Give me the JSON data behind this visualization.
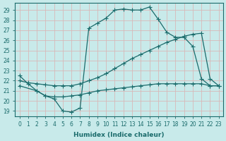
{
  "xlabel": "Humidex (Indice chaleur)",
  "bg_color": "#c8eaea",
  "grid_color": "#b0d8d8",
  "line_color": "#1a6b6b",
  "xlim": [
    -0.5,
    23.5
  ],
  "ylim": [
    18.5,
    29.7
  ],
  "xticks": [
    0,
    1,
    2,
    3,
    4,
    5,
    6,
    7,
    8,
    9,
    10,
    11,
    12,
    13,
    14,
    15,
    16,
    17,
    18,
    19,
    20,
    21,
    22,
    23
  ],
  "yticks": [
    19,
    20,
    21,
    22,
    23,
    24,
    25,
    26,
    27,
    28,
    29
  ],
  "line1_x": [
    0,
    1,
    2,
    3,
    4,
    5,
    6,
    7,
    8,
    9,
    10,
    11,
    12,
    13,
    14,
    15,
    16,
    17,
    18,
    19,
    20,
    21,
    22,
    23
  ],
  "line1_y": [
    22.5,
    21.7,
    21.0,
    20.5,
    20.2,
    19.0,
    18.9,
    19.3,
    27.2,
    27.7,
    28.2,
    29.0,
    29.1,
    29.0,
    29.0,
    29.3,
    28.1,
    26.8,
    26.3,
    26.3,
    25.4,
    22.2,
    21.5,
    21.5
  ],
  "line2_x": [
    0,
    2,
    3,
    4,
    5,
    6,
    7,
    8,
    9,
    10,
    11,
    12,
    13,
    14,
    15,
    16,
    17,
    18,
    19,
    20,
    21,
    22,
    23
  ],
  "line2_y": [
    21.5,
    21.0,
    20.5,
    20.4,
    20.4,
    20.5,
    20.6,
    20.8,
    21.0,
    21.1,
    21.2,
    21.3,
    21.4,
    21.5,
    21.6,
    21.7,
    21.7,
    21.7,
    21.7,
    21.7,
    21.7,
    21.5,
    21.5
  ],
  "line3_x": [
    0,
    1,
    2,
    3,
    4,
    5,
    6,
    7,
    8,
    9,
    10,
    11,
    12,
    13,
    14,
    15,
    16,
    17,
    18,
    19,
    20,
    21,
    22,
    23
  ],
  "line3_y": [
    22.0,
    21.8,
    21.7,
    21.6,
    21.5,
    21.5,
    21.5,
    21.7,
    22.0,
    22.3,
    22.7,
    23.2,
    23.7,
    24.2,
    24.6,
    25.0,
    25.4,
    25.8,
    26.1,
    26.4,
    26.6,
    26.7,
    22.2,
    21.5
  ]
}
